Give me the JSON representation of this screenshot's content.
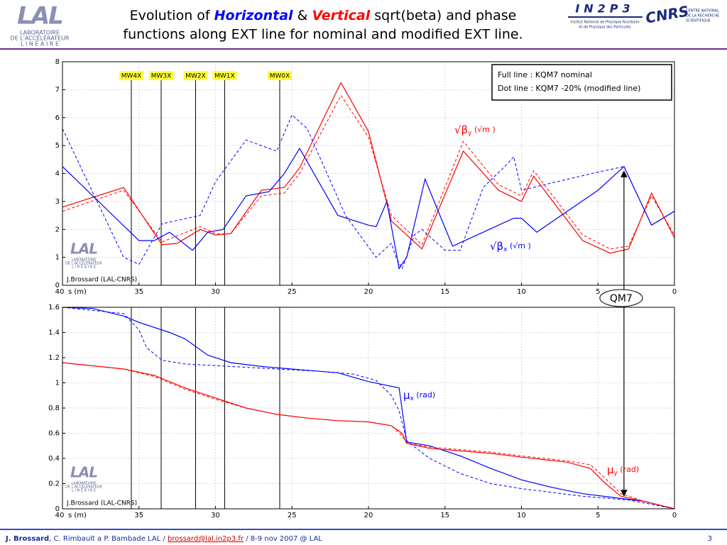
{
  "slide": {
    "title": {
      "line1": [
        {
          "text": "Evolution of ",
          "color": "#000000",
          "bold": false
        },
        {
          "text": "Horizontal",
          "color": "#0000ff",
          "bold": true
        },
        {
          "text": " & ",
          "color": "#000000",
          "bold": false
        },
        {
          "text": "Vertical",
          "color": "#ff0000",
          "bold": true
        },
        {
          "text": " sqrt(beta) and phase",
          "color": "#000000",
          "bold": false
        }
      ],
      "line2": "functions along EXT line for nominal and modified EXT line."
    },
    "logo": {
      "mark": "LAL",
      "lines": [
        "LABORATOIRE",
        "DE L'ACCÉLÉRATEUR",
        "L I N É A I R E"
      ]
    },
    "partner": {
      "mark": "IN2P3",
      "lines": [
        "Institut National de Physique Nucléaire",
        "et de Physique des Particules"
      ]
    },
    "cnrs": {
      "mark": "CNRS",
      "lines": [
        "CENTRE NATIONAL",
        "DE LA RECHERCHE",
        "SCIENTIFIQUE"
      ]
    },
    "footer": {
      "author": "J. Brossard",
      "coauthors": ", C. Rimbault a P. Bambade LAL / ",
      "email": "brossard@lal.in2p3.fr",
      "event": " / 8-9 nov 2007 @ LAL",
      "page": "3"
    },
    "qm7": {
      "label": "QM7",
      "x": 3.3
    }
  },
  "chart_data": [
    {
      "type": "line",
      "xlabel": "s (m)",
      "credit": "J.Brossard (LAL-CNRS)",
      "xlim": [
        40,
        0
      ],
      "xticks": [
        40,
        35,
        30,
        25,
        20,
        15,
        10,
        5,
        0
      ],
      "ylim": [
        0,
        8
      ],
      "yticks": [
        0,
        1,
        2,
        3,
        4,
        5,
        6,
        7,
        8
      ],
      "grid": true,
      "markers": [
        {
          "label": "MW4X",
          "x": 35.5
        },
        {
          "label": "MW3X",
          "x": 33.55
        },
        {
          "label": "MW2X",
          "x": 31.3
        },
        {
          "label": "MW1X",
          "x": 29.4
        },
        {
          "label": "MW0X",
          "x": 25.8
        }
      ],
      "legend_lines": [
        "Full line : KQM7 nominal",
        "Dot line : KQM7 -20% (modified line)"
      ],
      "annotations": [
        {
          "symbol": "√β",
          "sub": "y",
          "unit": " (√m )",
          "color": "#ff0000"
        },
        {
          "symbol": "√β",
          "sub": "x",
          "unit": " (√m )",
          "color": "#0000ff"
        }
      ],
      "series": [
        {
          "color": "#ff0000",
          "dash": false,
          "x": [
            40,
            36,
            33.5,
            32.5,
            31,
            30,
            29,
            27,
            25.5,
            24.5,
            21.8,
            20,
            18.5,
            16.5,
            13.8,
            11.5,
            10,
            9.2,
            6,
            4.2,
            3,
            1.5,
            0
          ],
          "values": [
            2.8,
            3.5,
            1.45,
            1.5,
            2.0,
            1.8,
            1.85,
            3.4,
            3.5,
            4.2,
            7.25,
            5.5,
            2.3,
            1.3,
            4.8,
            3.4,
            3.0,
            3.9,
            1.6,
            1.15,
            1.3,
            3.3,
            1.7
          ]
        },
        {
          "color": "#ff0000",
          "dash": true,
          "x": [
            40,
            36,
            33.5,
            31,
            30,
            29,
            27,
            25.5,
            24.5,
            21.8,
            20,
            18.5,
            16.5,
            13.8,
            11.5,
            10,
            9.2,
            6,
            4.2,
            3,
            1.5,
            0
          ],
          "values": [
            2.65,
            3.4,
            1.55,
            2.1,
            1.85,
            1.85,
            3.2,
            3.3,
            4.0,
            6.8,
            5.3,
            2.5,
            1.45,
            5.15,
            3.6,
            3.2,
            4.1,
            1.8,
            1.3,
            1.4,
            3.2,
            1.8
          ]
        },
        {
          "color": "#0000ff",
          "dash": false,
          "x": [
            40,
            35,
            34,
            33,
            31.5,
            30.5,
            29.5,
            28,
            26.5,
            25.5,
            24.5,
            22,
            20,
            19.5,
            18.8,
            18,
            17.5,
            16.3,
            14.5,
            12.5,
            10.5,
            10,
            9,
            5,
            3.3,
            1.5,
            0
          ],
          "values": [
            4.25,
            1.6,
            1.6,
            1.9,
            1.25,
            1.9,
            2.0,
            3.2,
            3.35,
            4.0,
            4.9,
            2.5,
            2.15,
            2.1,
            3.0,
            0.6,
            1.0,
            3.8,
            1.4,
            1.9,
            2.4,
            2.4,
            1.9,
            3.4,
            4.25,
            2.15,
            2.65
          ]
        },
        {
          "color": "#0000ff",
          "dash": true,
          "x": [
            40,
            36,
            35,
            33.5,
            31,
            30,
            28,
            26,
            25,
            24,
            21.5,
            19.5,
            18.5,
            18.2,
            17.8,
            17,
            16.5,
            15,
            14,
            12.5,
            11,
            10.5,
            10,
            8.5,
            5,
            3.3,
            1.5,
            0
          ],
          "values": [
            5.6,
            1.0,
            0.75,
            2.2,
            2.5,
            3.7,
            5.2,
            4.8,
            6.1,
            5.6,
            2.5,
            1.0,
            1.5,
            1.0,
            0.6,
            1.8,
            2.0,
            1.25,
            1.25,
            3.5,
            4.3,
            4.6,
            3.4,
            3.6,
            4.05,
            4.25,
            2.15,
            2.65
          ]
        }
      ]
    },
    {
      "type": "line",
      "xlabel": "s (m)",
      "credit": "J.Brossard (LAL-CNRS)",
      "xlim": [
        40,
        0
      ],
      "xticks": [
        40,
        35,
        30,
        25,
        20,
        15,
        10,
        5,
        0
      ],
      "ylim": [
        0,
        1.6
      ],
      "yticks": [
        0,
        0.2,
        0.4,
        0.6,
        0.8,
        1,
        1.2,
        1.4,
        1.6
      ],
      "grid": true,
      "annotations": [
        {
          "symbol": "μ",
          "sub": "x",
          "unit": " (rad)",
          "color": "#0000ff"
        },
        {
          "symbol": "μ",
          "sub": "y",
          "unit": " (rad)",
          "color": "#ff0000"
        }
      ],
      "series": [
        {
          "color": "#0000ff",
          "dash": false,
          "x": [
            40,
            38,
            36,
            35,
            33,
            32,
            30.5,
            29,
            27,
            24,
            22,
            20,
            18,
            17.5,
            16,
            14,
            12,
            10,
            8,
            6,
            4,
            2,
            0
          ],
          "values": [
            1.6,
            1.59,
            1.53,
            1.48,
            1.4,
            1.35,
            1.22,
            1.16,
            1.13,
            1.1,
            1.08,
            1.01,
            0.96,
            0.53,
            0.5,
            0.42,
            0.32,
            0.23,
            0.17,
            0.12,
            0.09,
            0.06,
            0.0
          ]
        },
        {
          "color": "#0000ff",
          "dash": true,
          "x": [
            40,
            36,
            35,
            34.5,
            33.5,
            32,
            29,
            26,
            23,
            21,
            19.5,
            18.5,
            18,
            17.5,
            16,
            14,
            12,
            10,
            6,
            3,
            0
          ],
          "values": [
            1.6,
            1.55,
            1.42,
            1.28,
            1.18,
            1.15,
            1.13,
            1.11,
            1.09,
            1.07,
            1.02,
            0.9,
            0.78,
            0.54,
            0.4,
            0.28,
            0.2,
            0.16,
            0.1,
            0.07,
            0.0
          ]
        },
        {
          "color": "#ff0000",
          "dash": false,
          "x": [
            40,
            36,
            34,
            32,
            30,
            28,
            26,
            24,
            22,
            20,
            18.5,
            17.8,
            17.5,
            16,
            14,
            12,
            10,
            7,
            5.5,
            4.5,
            3.5,
            2,
            0
          ],
          "values": [
            1.16,
            1.11,
            1.06,
            0.96,
            0.88,
            0.8,
            0.75,
            0.72,
            0.7,
            0.69,
            0.66,
            0.6,
            0.52,
            0.48,
            0.46,
            0.44,
            0.41,
            0.37,
            0.32,
            0.2,
            0.1,
            0.06,
            0.0
          ]
        },
        {
          "color": "#ff0000",
          "dash": true,
          "x": [
            40,
            36,
            34,
            32,
            30,
            28,
            26,
            24,
            22,
            20,
            18.5,
            17.8,
            17.5,
            16,
            14,
            12,
            10,
            7,
            5.5,
            4.5,
            3.5,
            2,
            0
          ],
          "values": [
            1.16,
            1.11,
            1.05,
            0.95,
            0.87,
            0.8,
            0.75,
            0.72,
            0.7,
            0.69,
            0.66,
            0.58,
            0.52,
            0.49,
            0.47,
            0.45,
            0.42,
            0.38,
            0.35,
            0.24,
            0.12,
            0.06,
            0.0
          ]
        }
      ]
    }
  ]
}
